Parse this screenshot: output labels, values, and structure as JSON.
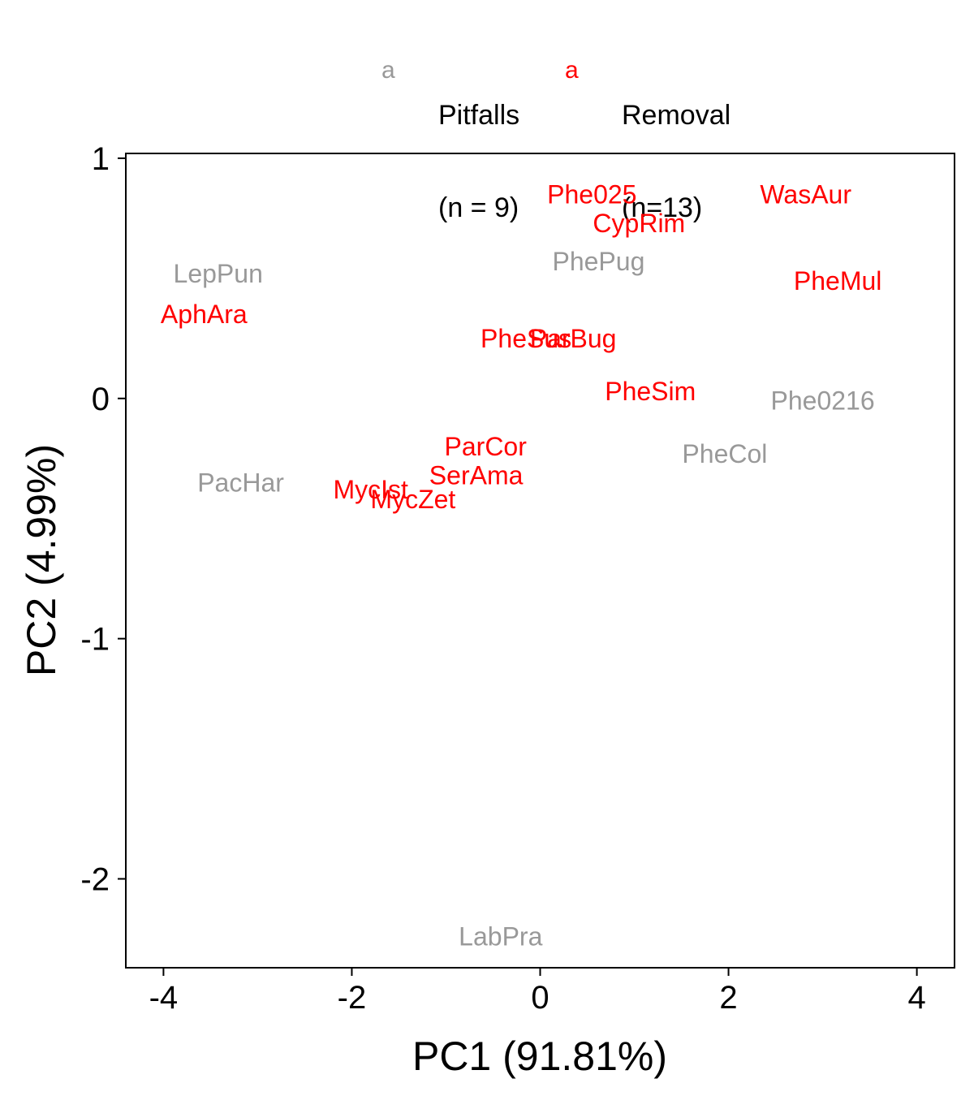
{
  "chart_data": {
    "type": "scatter",
    "mark": "text-labels",
    "xlabel": "PC1 (91.81%)",
    "ylabel": "PC2 (4.99%)",
    "xlim": [
      -4.4,
      4.4
    ],
    "ylim": [
      -2.37,
      1.02
    ],
    "xticks": [
      -4,
      -2,
      0,
      2,
      4
    ],
    "yticks": [
      -2,
      -1,
      0,
      1
    ],
    "xtick_labels": [
      "-4",
      "-2",
      "0",
      "2",
      "4"
    ],
    "ytick_labels": [
      "-2",
      "-1",
      "0",
      "1"
    ],
    "grid": false,
    "legend_position": "top",
    "legend": [
      {
        "key": "a",
        "label_line1": "Pitfalls",
        "label_line2": "(n = 9)",
        "color": "#999999"
      },
      {
        "key": "a",
        "label_line1": "Removal",
        "label_line2": "(n=13)",
        "color": "#ff0000"
      }
    ],
    "series": [
      {
        "name": "Pitfalls",
        "color": "#999999",
        "points": [
          {
            "label": "LepPun",
            "x": -3.42,
            "y": 0.52
          },
          {
            "label": "PhePug",
            "x": 0.62,
            "y": 0.57
          },
          {
            "label": "Phe0216",
            "x": 3.0,
            "y": -0.01
          },
          {
            "label": "PheCol",
            "x": 1.96,
            "y": -0.23
          },
          {
            "label": "PacHar",
            "x": -3.18,
            "y": -0.35
          },
          {
            "label": "LabPra",
            "x": -0.42,
            "y": -2.24
          }
        ]
      },
      {
        "name": "Removal",
        "color": "#ff0000",
        "points": [
          {
            "label": "Phe025",
            "x": 0.55,
            "y": 0.85
          },
          {
            "label": "WasAur",
            "x": 2.82,
            "y": 0.85
          },
          {
            "label": "CypRim",
            "x": 1.05,
            "y": 0.73
          },
          {
            "label": "PheMul",
            "x": 3.16,
            "y": 0.49
          },
          {
            "label": "AphAra",
            "x": -3.57,
            "y": 0.35
          },
          {
            "label": "PheSus",
            "x": -0.15,
            "y": 0.25
          },
          {
            "label": "ParBug",
            "x": 0.35,
            "y": 0.25
          },
          {
            "label": "PheSim",
            "x": 1.17,
            "y": 0.03
          },
          {
            "label": "ParCor",
            "x": -0.58,
            "y": -0.2
          },
          {
            "label": "SerAma",
            "x": -0.68,
            "y": -0.32
          },
          {
            "label": "MycIst",
            "x": -1.8,
            "y": -0.38
          },
          {
            "label": "MycZet",
            "x": -1.35,
            "y": -0.42
          }
        ]
      }
    ]
  }
}
